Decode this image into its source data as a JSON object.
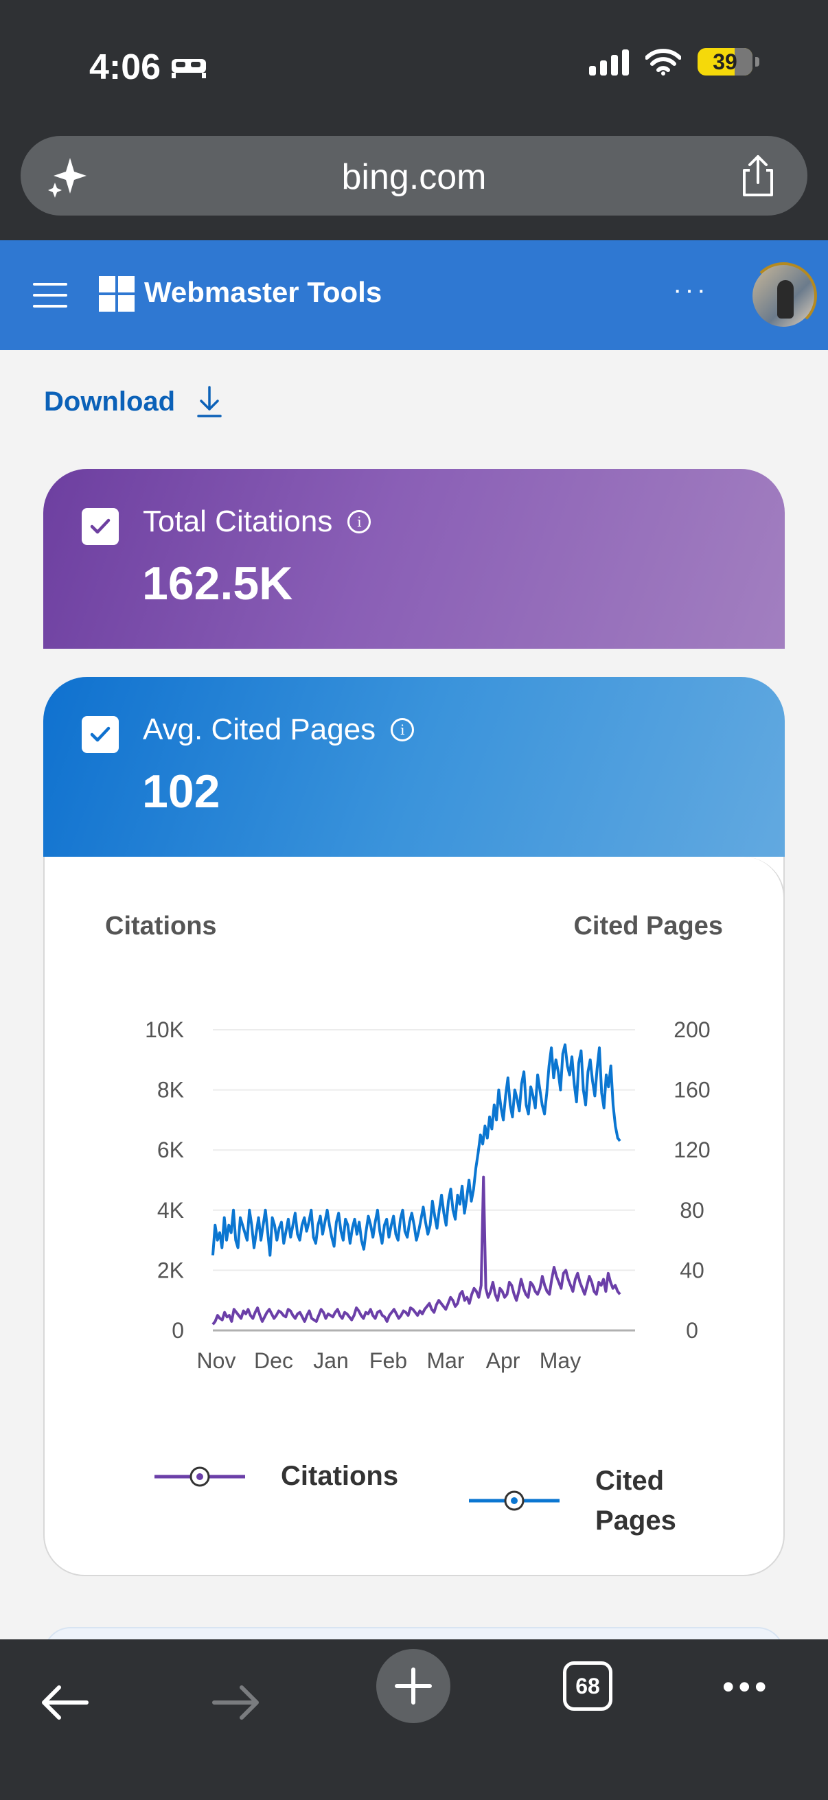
{
  "status_bar": {
    "time": "4:06",
    "battery": "39"
  },
  "browser": {
    "url": "bing.com",
    "tab_count": "68"
  },
  "header": {
    "title": "Webmaster Tools",
    "more_label": "···"
  },
  "actions": {
    "download_label": "Download"
  },
  "kpis": [
    {
      "label": "Total Citations",
      "value": "162.5K",
      "checked": true,
      "color": "#6d3fa0"
    },
    {
      "label": "Avg. Cited Pages",
      "value": "102",
      "checked": true,
      "color": "#0f71cf"
    }
  ],
  "chart": {
    "left_axis_title": "Citations",
    "right_axis_title": "Cited Pages",
    "legend": {
      "citations": "Citations",
      "cited_pages": "Cited Pages"
    }
  },
  "chart_data": {
    "type": "line",
    "x_labels": [
      "Nov",
      "Dec",
      "Jan",
      "Feb",
      "Mar",
      "Apr",
      "May"
    ],
    "y_left": {
      "ticks": [
        "10K",
        "8K",
        "6K",
        "4K",
        "2K",
        "0"
      ],
      "range": [
        0,
        10000
      ]
    },
    "y_right": {
      "ticks": [
        "200",
        "160",
        "120",
        "80",
        "40",
        "0"
      ],
      "range": [
        0,
        200
      ]
    },
    "series": [
      {
        "name": "Citations",
        "axis": "left",
        "color": "#6b3fa8",
        "values": [
          200,
          300,
          500,
          400,
          350,
          600,
          450,
          500,
          300,
          700,
          600,
          500,
          400,
          650,
          550,
          700,
          500,
          400,
          600,
          750,
          500,
          300,
          450,
          600,
          700,
          550,
          400,
          500,
          650,
          600,
          500,
          450,
          700,
          650,
          500,
          400,
          550,
          600,
          450,
          300,
          500,
          650,
          400,
          350,
          300,
          500,
          700,
          600,
          400,
          550,
          500,
          450,
          600,
          700,
          500,
          400,
          600,
          550,
          450,
          350,
          500,
          750,
          650,
          500,
          400,
          600,
          550,
          700,
          500,
          400,
          600,
          650,
          500,
          450,
          300,
          500,
          600,
          700,
          550,
          400,
          500,
          650,
          600,
          500,
          750,
          700,
          600,
          500,
          650,
          550,
          700,
          800,
          900,
          700,
          600,
          850,
          1000,
          900,
          800,
          700,
          900,
          1100,
          1000,
          800,
          900,
          1200,
          1300,
          1000,
          1100,
          900,
          1200,
          1400,
          1300,
          1100,
          1500,
          5100,
          1400,
          1100,
          1300,
          1600,
          1200,
          1000,
          1400,
          1300,
          1100,
          1200,
          1600,
          1500,
          1200,
          1000,
          1300,
          1700,
          1400,
          1200,
          1100,
          1600,
          1500,
          1300,
          1200,
          1400,
          1800,
          1500,
          1300,
          1200,
          1700,
          2100,
          1800,
          1600,
          1400,
          1900,
          2000,
          1700,
          1500,
          1300,
          1700,
          1900,
          1600,
          1400,
          1200,
          1500,
          1800,
          1600,
          1300,
          1200,
          1600,
          1500,
          1700,
          1300,
          1900,
          1600,
          1400,
          1500,
          1300,
          1200
        ],
        "peak": {
          "label": "Mar",
          "value": 5100
        }
      },
      {
        "name": "Cited Pages",
        "axis": "right",
        "color": "#0b76d1",
        "values": [
          50,
          70,
          60,
          65,
          55,
          75,
          60,
          70,
          65,
          80,
          60,
          55,
          75,
          70,
          65,
          60,
          80,
          70,
          55,
          65,
          75,
          60,
          70,
          80,
          65,
          50,
          75,
          70,
          60,
          68,
          72,
          58,
          66,
          74,
          62,
          70,
          78,
          64,
          60,
          70,
          75,
          66,
          72,
          80,
          62,
          58,
          70,
          76,
          64,
          72,
          80,
          70,
          62,
          56,
          72,
          78,
          66,
          60,
          74,
          70,
          58,
          68,
          74,
          64,
          72,
          60,
          54,
          66,
          76,
          70,
          62,
          72,
          80,
          66,
          58,
          70,
          74,
          62,
          70,
          76,
          64,
          60,
          74,
          80,
          66,
          62,
          72,
          78,
          70,
          60,
          66,
          74,
          82,
          72,
          64,
          70,
          86,
          76,
          68,
          80,
          90,
          78,
          70,
          86,
          94,
          80,
          74,
          90,
          84,
          96,
          78,
          88,
          100,
          86,
          94,
          108,
          118,
          130,
          124,
          136,
          128,
          142,
          134,
          150,
          140,
          160,
          148,
          140,
          156,
          168,
          150,
          142,
          160,
          154,
          146,
          164,
          172,
          150,
          144,
          162,
          156,
          148,
          170,
          160,
          150,
          144,
          158,
          176,
          188,
          168,
          180,
          172,
          160,
          184,
          190,
          176,
          170,
          182,
          164,
          152,
          178,
          186,
          160,
          150,
          172,
          180,
          166,
          156,
          174,
          188,
          158,
          148,
          170,
          162,
          176,
          150,
          136,
          128,
          126
        ]
      }
    ]
  }
}
